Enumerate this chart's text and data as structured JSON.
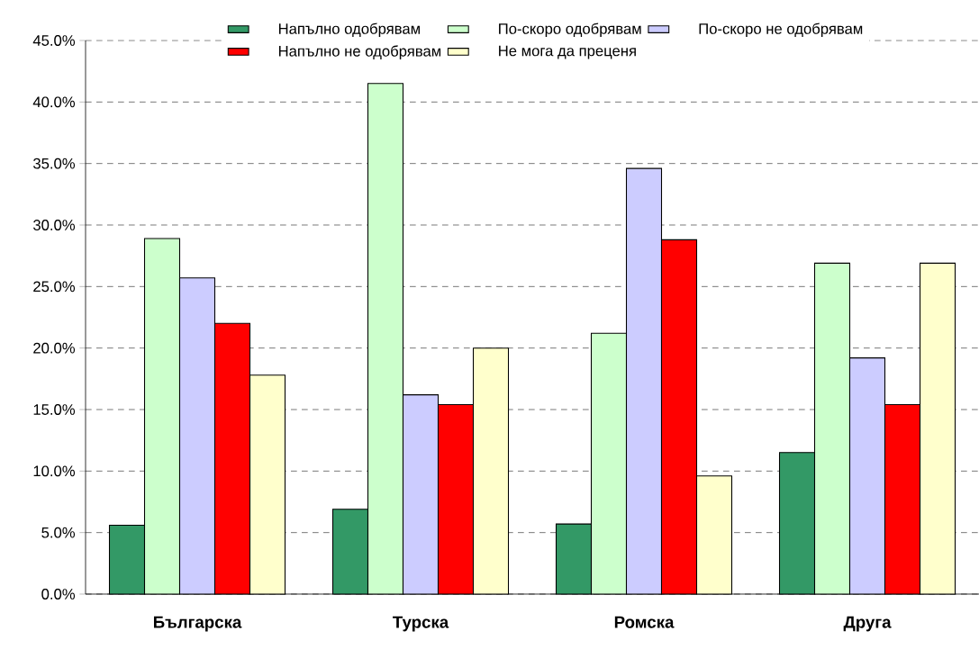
{
  "chart_data": {
    "type": "bar",
    "categories": [
      "Българска",
      "Турска",
      "Ромска",
      "Друга"
    ],
    "series": [
      {
        "name": "Напълно одобрявам",
        "color": "#339966",
        "values": [
          5.6,
          6.9,
          5.7,
          11.5
        ]
      },
      {
        "name": "По-скоро одобрявам",
        "color": "#ccffcc",
        "values": [
          28.9,
          41.5,
          21.2,
          26.9
        ]
      },
      {
        "name": "По-скоро не одобрявам",
        "color": "#ccccff",
        "values": [
          25.7,
          16.2,
          34.6,
          19.2
        ]
      },
      {
        "name": "Напълно не одобрявам",
        "color": "#ff0000",
        "values": [
          22.0,
          15.4,
          28.8,
          15.4
        ]
      },
      {
        "name": "Не мога да преценя",
        "color": "#ffffcc",
        "values": [
          17.8,
          20.0,
          9.6,
          26.9
        ]
      }
    ],
    "ylim": [
      0,
      45
    ],
    "yticks": [
      {
        "value": 0,
        "label": "0.0%"
      },
      {
        "value": 5,
        "label": "5.0%"
      },
      {
        "value": 10,
        "label": "10.0%"
      },
      {
        "value": 15,
        "label": "15.0%"
      },
      {
        "value": 20,
        "label": "20.0%"
      },
      {
        "value": 25,
        "label": "25.0%"
      },
      {
        "value": 30,
        "label": "30.0%"
      },
      {
        "value": 35,
        "label": "35.0%"
      },
      {
        "value": 40,
        "label": "40.0%"
      },
      {
        "value": 45,
        "label": "45.0%"
      }
    ],
    "grid": "y",
    "legend": "top"
  }
}
